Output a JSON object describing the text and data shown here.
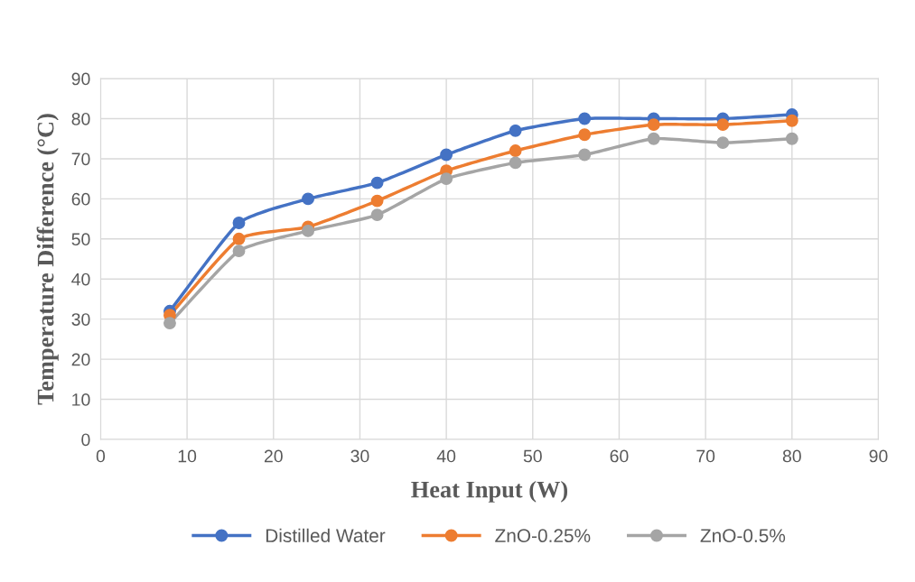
{
  "chart_data": {
    "type": "line",
    "xlabel": "Heat Input (W)",
    "ylabel": "Temperature Difference (°C)",
    "x": [
      8,
      16,
      24,
      32,
      40,
      48,
      56,
      64,
      72,
      80
    ],
    "series": [
      {
        "name": "Distilled Water",
        "color": "#4472c4",
        "values": [
          32,
          54,
          60,
          64,
          71,
          77,
          80,
          80,
          80,
          81
        ]
      },
      {
        "name": "ZnO-0.25%",
        "color": "#ed7d31",
        "values": [
          31,
          50,
          53,
          59.5,
          67,
          72,
          76,
          78.5,
          78.5,
          79.5
        ]
      },
      {
        "name": "ZnO-0.5%",
        "color": "#a5a5a5",
        "values": [
          29,
          47,
          52,
          56,
          65,
          69,
          71,
          75,
          74,
          75
        ]
      }
    ],
    "xlim": [
      0,
      90
    ],
    "xticks": [
      0,
      10,
      20,
      30,
      40,
      50,
      60,
      70,
      80,
      90
    ],
    "ylim": [
      0,
      90
    ],
    "yticks": [
      0,
      10,
      20,
      30,
      40,
      50,
      60,
      70,
      80,
      90
    ],
    "grid": true,
    "legend": "bottom",
    "marker": "circle",
    "line_style": "solid"
  }
}
